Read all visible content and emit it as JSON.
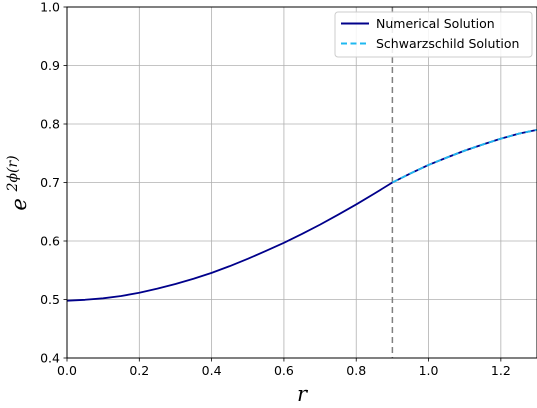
{
  "chart_data": {
    "type": "line",
    "xlabel": "r",
    "ylabel": {
      "base": "e",
      "exponent": "2ϕ(r)"
    },
    "xlim": [
      0.0,
      1.3
    ],
    "ylim": [
      0.4,
      1.0
    ],
    "xticks": [
      "0.0",
      "0.2",
      "0.4",
      "0.6",
      "0.8",
      "1.0",
      "1.2"
    ],
    "yticks": [
      "0.4",
      "0.5",
      "0.6",
      "0.7",
      "0.8",
      "0.9",
      "1.0"
    ],
    "grid": true,
    "legend_position": "top-right",
    "vline": {
      "x": 0.9,
      "color": "#808080",
      "style": "dashed"
    },
    "series": [
      {
        "name": "Numerical Solution",
        "color": "#00008b",
        "style": "solid",
        "x": [
          0.0,
          0.05,
          0.1,
          0.15,
          0.2,
          0.25,
          0.3,
          0.35,
          0.4,
          0.45,
          0.5,
          0.55,
          0.6,
          0.65,
          0.7,
          0.75,
          0.8,
          0.85,
          0.9,
          0.95,
          1.0,
          1.05,
          1.1,
          1.15,
          1.2,
          1.25,
          1.3
        ],
        "y": [
          0.498,
          0.4995,
          0.502,
          0.506,
          0.5115,
          0.5185,
          0.5265,
          0.5355,
          0.5455,
          0.557,
          0.5695,
          0.583,
          0.597,
          0.612,
          0.628,
          0.645,
          0.6625,
          0.681,
          0.7,
          0.7155,
          0.73,
          0.7425,
          0.7545,
          0.765,
          0.775,
          0.7835,
          0.79
        ]
      },
      {
        "name": "Schwarzschild Solution",
        "color": "#1fb8f0",
        "style": "dashed",
        "x": [
          0.9,
          0.95,
          1.0,
          1.05,
          1.1,
          1.15,
          1.2,
          1.25,
          1.3
        ],
        "y": [
          0.7,
          0.7155,
          0.73,
          0.7425,
          0.7545,
          0.765,
          0.775,
          0.7835,
          0.79
        ]
      }
    ]
  }
}
